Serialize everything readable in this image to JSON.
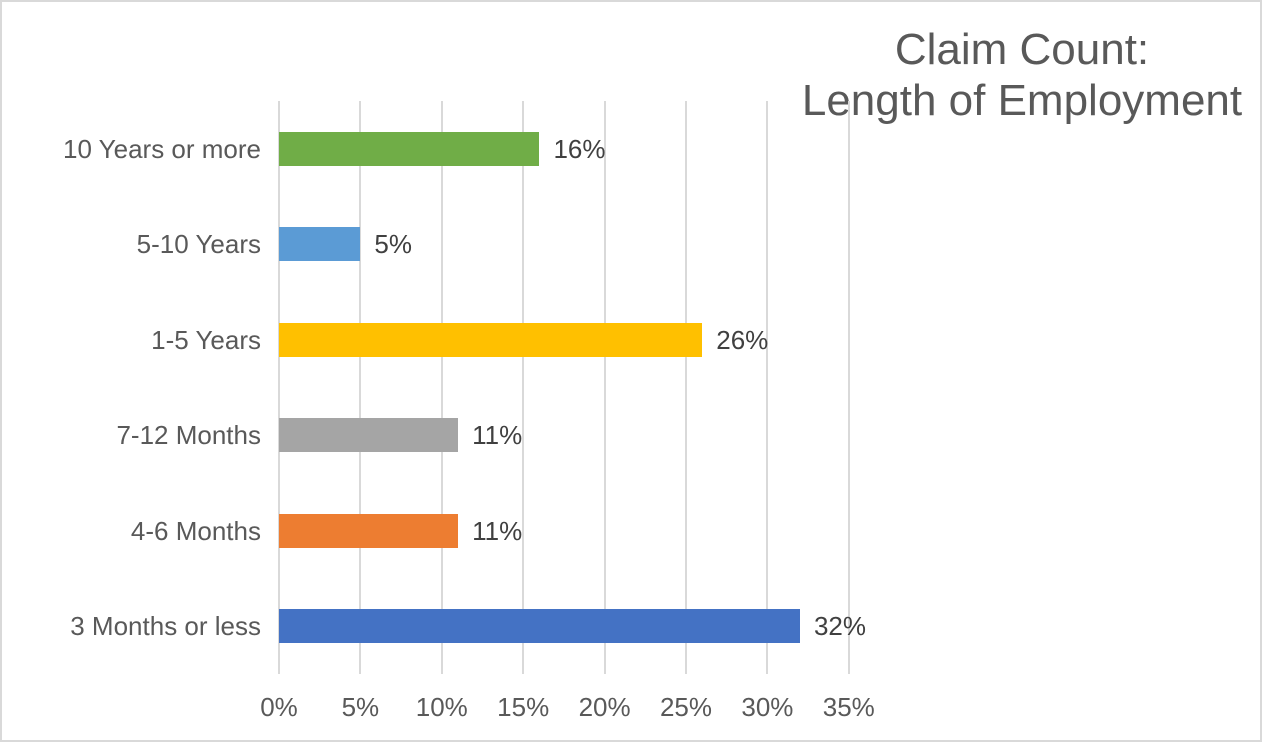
{
  "chart_data": {
    "type": "bar",
    "orientation": "horizontal",
    "title": "Claim Count:\nLength of Employment",
    "categories": [
      "10 Years or more",
      "5-10 Years",
      "1-5 Years",
      "7-12 Months",
      "4-6 Months",
      "3 Months or less"
    ],
    "values": [
      16,
      5,
      26,
      11,
      11,
      32
    ],
    "data_labels": [
      "16%",
      "5%",
      "26%",
      "11%",
      "11%",
      "32%"
    ],
    "bar_colors": [
      "#70AD47",
      "#5B9BD5",
      "#FFC000",
      "#A5A5A5",
      "#ED7D31",
      "#4472C4"
    ],
    "xlabel": "",
    "ylabel": "",
    "xlim": [
      0,
      35
    ],
    "x_tick_step": 5,
    "x_tick_labels": [
      "0%",
      "5%",
      "10%",
      "15%",
      "20%",
      "25%",
      "30%",
      "35%"
    ],
    "grid": "vertical",
    "legend": "none",
    "colors": {
      "gridline": "#d9d9d9",
      "title_text": "#595959",
      "axis_text": "#595959",
      "data_label_text": "#404040",
      "chart_border": "#d9d9d9",
      "background": "#ffffff"
    }
  }
}
